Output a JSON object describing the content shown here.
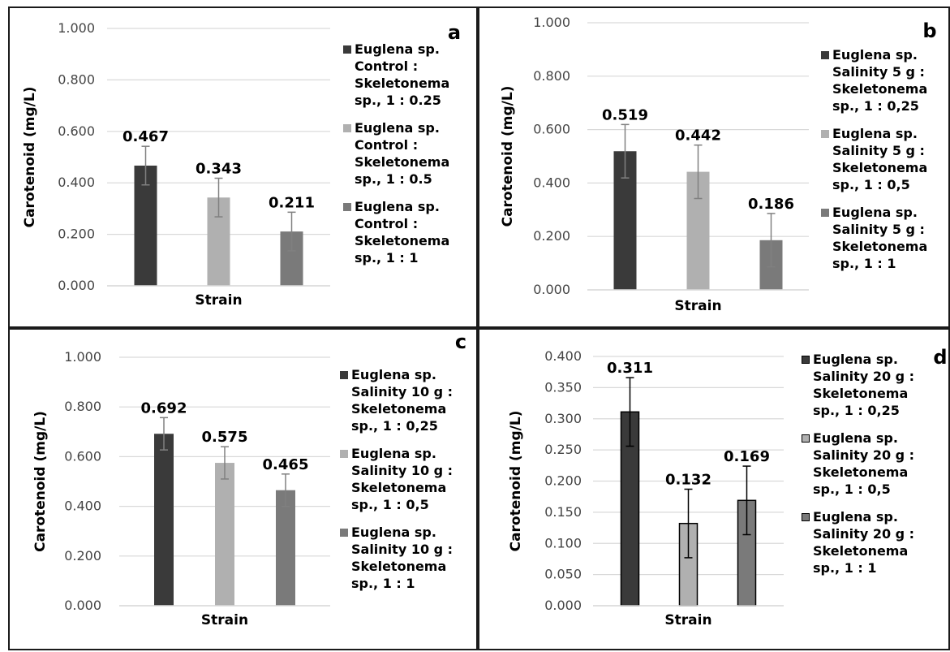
{
  "colors": {
    "dark": "#3a3a3a",
    "light": "#b0b0b0",
    "mid": "#7a7a7a",
    "grid": "#d9d9d9",
    "error": "#808080"
  },
  "chart_data": [
    {
      "type": "bar",
      "panel_letter": "a",
      "xlabel": "Strain",
      "ylabel": "Carotenoid (mg/L)",
      "ylim": [
        0,
        1.0
      ],
      "yticks": [
        "0.000",
        "0.200",
        "0.400",
        "0.600",
        "0.800",
        "1.000"
      ],
      "ytick_values": [
        0,
        0.2,
        0.4,
        0.6,
        0.8,
        1.0
      ],
      "grid": true,
      "legend_position": "right",
      "series": [
        {
          "name": "Euglena sp.\nControl :\nSkeletonema\nsp., 1 : 0.25",
          "value": 0.467,
          "label": "0.467",
          "error": 0.075,
          "color": "dark"
        },
        {
          "name": "Euglena sp.\nControl :\nSkeletonema\nsp., 1 : 0.5",
          "value": 0.343,
          "label": "0.343",
          "error": 0.075,
          "color": "light"
        },
        {
          "name": "Euglena sp.\nControl :\nSkeletonema\nsp., 1 : 1",
          "value": 0.211,
          "label": "0.211",
          "error": 0.075,
          "color": "mid"
        }
      ]
    },
    {
      "type": "bar",
      "panel_letter": "b",
      "xlabel": "Strain",
      "ylabel": "Carotenoid (mg/L)",
      "ylim": [
        0,
        1.0
      ],
      "yticks": [
        "0.000",
        "0.200",
        "0.400",
        "0.600",
        "0.800",
        "1.000"
      ],
      "ytick_values": [
        0,
        0.2,
        0.4,
        0.6,
        0.8,
        1.0
      ],
      "grid": true,
      "legend_position": "right",
      "series": [
        {
          "name": "Euglena sp.\nSalinity 5 g :\nSkeletonema\nsp., 1 : 0,25",
          "value": 0.519,
          "label": "0.519",
          "error": 0.1,
          "color": "dark"
        },
        {
          "name": "Euglena sp.\nSalinity 5 g :\nSkeletonema\nsp., 1 : 0,5",
          "value": 0.442,
          "label": "0.442",
          "error": 0.1,
          "color": "light"
        },
        {
          "name": "Euglena sp.\nSalinity 5 g :\nSkeletonema\nsp., 1 : 1",
          "value": 0.186,
          "label": "0.186",
          "error": 0.1,
          "color": "mid"
        }
      ]
    },
    {
      "type": "bar",
      "panel_letter": "c",
      "xlabel": "Strain",
      "ylabel": "Carotenoid (mg/L)",
      "ylim": [
        0,
        1.0
      ],
      "yticks": [
        "0.000",
        "0.200",
        "0.400",
        "0.600",
        "0.800",
        "1.000"
      ],
      "ytick_values": [
        0,
        0.2,
        0.4,
        0.6,
        0.8,
        1.0
      ],
      "grid": true,
      "legend_position": "right",
      "series": [
        {
          "name": "Euglena sp.\nSalinity 10 g :\nSkeletonema\nsp., 1 : 0,25",
          "value": 0.692,
          "label": "0.692",
          "error": 0.065,
          "color": "dark"
        },
        {
          "name": "Euglena sp.\nSalinity 10 g :\nSkeletonema\nsp., 1 : 0,5",
          "value": 0.575,
          "label": "0.575",
          "error": 0.065,
          "color": "light"
        },
        {
          "name": "Euglena sp.\nSalinity 10 g :\nSkeletonema\nsp., 1 : 1",
          "value": 0.465,
          "label": "0.465",
          "error": 0.065,
          "color": "mid"
        }
      ]
    },
    {
      "type": "bar",
      "panel_letter": "d",
      "xlabel": "Strain",
      "ylabel": "Carotenoid (mg/L)",
      "ylim": [
        0,
        0.4
      ],
      "yticks": [
        "0.000",
        "0.050",
        "0.100",
        "0.150",
        "0.200",
        "0.250",
        "0.300",
        "0.350",
        "0.400"
      ],
      "ytick_values": [
        0,
        0.05,
        0.1,
        0.15,
        0.2,
        0.25,
        0.3,
        0.35,
        0.4
      ],
      "grid": true,
      "legend_position": "right",
      "series": [
        {
          "name": "Euglena sp.\nSalinity 20 g :\nSkeletonema\nsp., 1 : 0,25",
          "value": 0.311,
          "label": "0.311",
          "error": 0.055,
          "color": "dark"
        },
        {
          "name": "Euglena sp.\nSalinity 20 g :\nSkeletonema\nsp., 1 : 0,5",
          "value": 0.132,
          "label": "0.132",
          "error": 0.055,
          "color": "light"
        },
        {
          "name": "Euglena sp.\nSalinity 20 g :\nSkeletonema\nsp., 1 : 1",
          "value": 0.169,
          "label": "0.169",
          "error": 0.055,
          "color": "mid"
        }
      ]
    }
  ]
}
